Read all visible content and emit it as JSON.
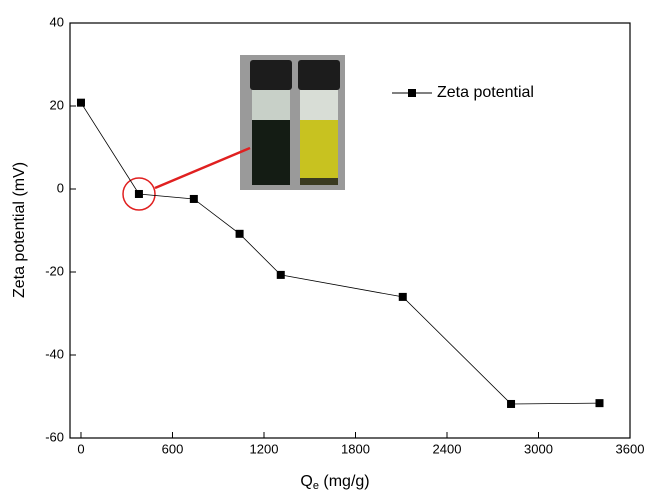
{
  "chart_data": {
    "type": "line",
    "x_label": [
      "Q",
      "e",
      " (mg/g)"
    ],
    "y_label": "Zeta potential (mV)",
    "x": [
      0,
      380,
      740,
      1040,
      1310,
      2110,
      2820,
      3400
    ],
    "series": [
      {
        "name": "Zeta potential",
        "color": "#000000",
        "values": [
          20.8,
          -1.2,
          -2.4,
          -10.8,
          -20.7,
          -26,
          -51.8,
          -51.6
        ]
      }
    ],
    "xlim": [
      -72,
      3600
    ],
    "xticks": [
      0,
      600,
      1200,
      1800,
      2400,
      3000,
      3600
    ],
    "ylim": [
      -60,
      40
    ],
    "yticks": [
      -60,
      -40,
      -20,
      0,
      20,
      40
    ],
    "legend": "upper right"
  }
}
